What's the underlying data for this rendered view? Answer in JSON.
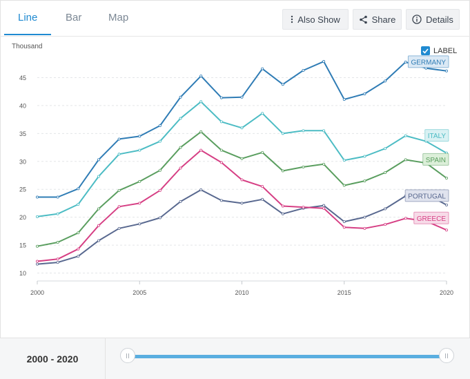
{
  "tabs": [
    {
      "label": "Line",
      "active": true
    },
    {
      "label": "Bar",
      "active": false
    },
    {
      "label": "Map",
      "active": false
    }
  ],
  "toolbar": {
    "also_show_label": "Also Show",
    "share_label": "Share",
    "details_label": "Details"
  },
  "label_toggle": {
    "text": "LABEL",
    "checked": true
  },
  "range": {
    "start": "2000",
    "separator": " - ",
    "end": "2020"
  },
  "chart_data": {
    "type": "line",
    "ylabel": "Thousand",
    "ylim": [
      8.5,
      48.5
    ],
    "yticks": [
      10,
      15,
      20,
      25,
      30,
      35,
      40,
      45
    ],
    "xlim": [
      2000,
      2020
    ],
    "xticks": [
      2000,
      2005,
      2010,
      2015,
      2020
    ],
    "grid": "horizontal dashed",
    "x": [
      2000,
      2001,
      2002,
      2003,
      2004,
      2005,
      2006,
      2007,
      2008,
      2009,
      2010,
      2011,
      2012,
      2013,
      2014,
      2015,
      2016,
      2017,
      2018,
      2019,
      2020
    ],
    "series": [
      {
        "name": "GERMANY",
        "color": "#2f7cb5",
        "label_bg": "#dbe9f5",
        "values": [
          23.6,
          23.6,
          25.1,
          30.3,
          34.0,
          34.5,
          36.4,
          41.5,
          45.3,
          41.4,
          41.5,
          46.6,
          43.8,
          46.3,
          47.9,
          41.1,
          42.1,
          44.4,
          47.8,
          46.7,
          46.2
        ]
      },
      {
        "name": "ITALY",
        "color": "#4cbcc4",
        "label_bg": "#d9f1f3",
        "values": [
          20.1,
          20.6,
          22.3,
          27.3,
          31.3,
          32.0,
          33.6,
          37.7,
          40.7,
          37.1,
          36.0,
          38.6,
          35.0,
          35.5,
          35.5,
          30.2,
          30.9,
          32.3,
          34.6,
          33.6,
          31.5
        ]
      },
      {
        "name": "SPAIN",
        "color": "#5a9e5f",
        "label_bg": "#dcefd9",
        "values": [
          14.8,
          15.5,
          17.2,
          21.5,
          24.8,
          26.4,
          28.4,
          32.5,
          35.3,
          32.0,
          30.5,
          31.6,
          28.3,
          29.0,
          29.5,
          25.7,
          26.5,
          28.0,
          30.3,
          29.7,
          27.0
        ]
      },
      {
        "name": "PORTUGAL",
        "color": "#58688f",
        "label_bg": "#e0e3ee",
        "values": [
          11.6,
          11.9,
          13.0,
          15.8,
          18.0,
          18.8,
          19.9,
          22.8,
          24.9,
          23.0,
          22.5,
          23.2,
          20.6,
          21.6,
          22.1,
          19.2,
          20.0,
          21.5,
          23.8,
          24.2,
          22.2
        ]
      },
      {
        "name": "GREECE",
        "color": "#d63f84",
        "label_bg": "#f7dbe8",
        "values": [
          12.1,
          12.5,
          14.3,
          18.5,
          21.9,
          22.5,
          24.8,
          28.8,
          32.0,
          29.8,
          26.7,
          25.5,
          22.0,
          21.8,
          21.6,
          18.2,
          18.0,
          18.7,
          19.8,
          19.3,
          17.7
        ]
      }
    ]
  }
}
